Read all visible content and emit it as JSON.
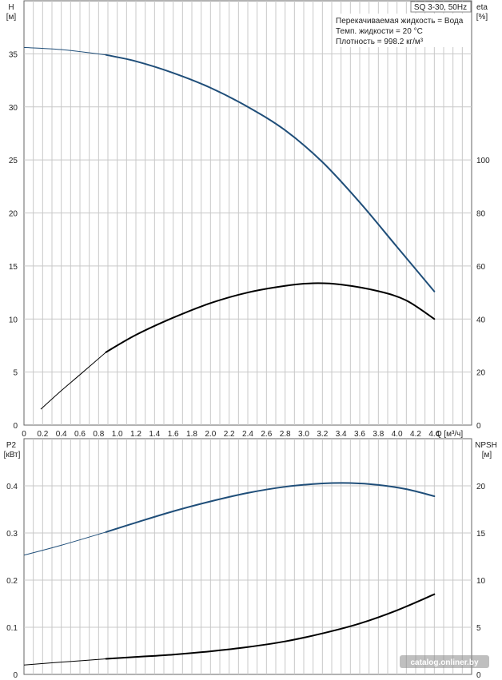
{
  "chart_data": [
    {
      "type": "line",
      "panel": "top",
      "title_box": "SQ 3-30, 50Hz",
      "info": [
        "Перекачиваемая жидкость = Вода",
        "Темп. жидкости = 20 °C",
        "Плотность = 998.2 кг/м³"
      ],
      "ylabel_left": {
        "name": "H",
        "unit": "[м]"
      },
      "ylabel_right": {
        "name": "eta",
        "unit": "[%]"
      },
      "xlabel": "Q [м³/ч]",
      "xlim": [
        0,
        4.8
      ],
      "ylim_left": [
        0,
        40
      ],
      "ylim_right": [
        0,
        160
      ],
      "x_ticks": [
        "0",
        "0.2",
        "0.4",
        "0.6",
        "0.8",
        "1.0",
        "1.2",
        "1.4",
        "1.6",
        "1.8",
        "2.0",
        "2.2",
        "2.4",
        "2.6",
        "2.8",
        "3.0",
        "3.2",
        "3.4",
        "3.6",
        "3.8",
        "4.0",
        "4.2",
        "4.4"
      ],
      "y_ticks_left": [
        "0",
        "5",
        "10",
        "15",
        "20",
        "25",
        "30",
        "35"
      ],
      "y_ticks_right": [
        "0",
        "20",
        "40",
        "60",
        "80",
        "100"
      ],
      "series": [
        {
          "axis": "left",
          "color": "#1f4e79",
          "duty_start": 0.88,
          "x": [
            0,
            0.4,
            0.88,
            1.2,
            1.6,
            2.0,
            2.4,
            2.8,
            3.2,
            3.6,
            4.0,
            4.4
          ],
          "y": [
            35.6,
            35.4,
            34.9,
            34.3,
            33.2,
            31.8,
            30.0,
            27.8,
            24.8,
            21.0,
            16.8,
            12.6
          ]
        },
        {
          "axis": "right",
          "color": "#000000",
          "duty_start": 0.88,
          "x": [
            0.18,
            0.4,
            0.6,
            0.88,
            1.2,
            1.6,
            2.0,
            2.4,
            2.8,
            3.1,
            3.4,
            3.8,
            4.1,
            4.4
          ],
          "y": [
            6,
            13,
            19,
            27.5,
            34,
            40.5,
            46,
            50,
            52.5,
            53.5,
            53,
            50.5,
            47,
            40
          ]
        }
      ]
    },
    {
      "type": "line",
      "panel": "bottom",
      "ylabel_left": {
        "name": "P2",
        "unit": "[кВт]"
      },
      "ylabel_right": {
        "name": "NPSH",
        "unit": "[м]"
      },
      "xlim": [
        0,
        4.8
      ],
      "ylim_left": [
        0,
        0.5
      ],
      "ylim_right": [
        0,
        25
      ],
      "y_ticks_left": [
        "0",
        "0.1",
        "0.2",
        "0.3",
        "0.4"
      ],
      "y_ticks_right": [
        "0",
        "5",
        "10",
        "15",
        "20"
      ],
      "series": [
        {
          "axis": "left",
          "color": "#1f4e79",
          "duty_start": 0.88,
          "x": [
            0,
            0.4,
            0.88,
            1.2,
            1.6,
            2.0,
            2.4,
            2.8,
            3.2,
            3.5,
            3.8,
            4.1,
            4.4
          ],
          "y": [
            0.253,
            0.274,
            0.302,
            0.322,
            0.346,
            0.367,
            0.385,
            0.398,
            0.405,
            0.406,
            0.402,
            0.393,
            0.378
          ]
        },
        {
          "axis": "right",
          "color": "#000000",
          "duty_start": 0.88,
          "x": [
            0,
            0.4,
            0.88,
            1.2,
            1.6,
            2.0,
            2.4,
            2.8,
            3.2,
            3.6,
            4.0,
            4.4
          ],
          "y": [
            1.0,
            1.3,
            1.65,
            1.85,
            2.1,
            2.45,
            2.9,
            3.5,
            4.35,
            5.4,
            6.8,
            8.5
          ]
        }
      ]
    }
  ],
  "watermark": "catalog.onliner.by"
}
